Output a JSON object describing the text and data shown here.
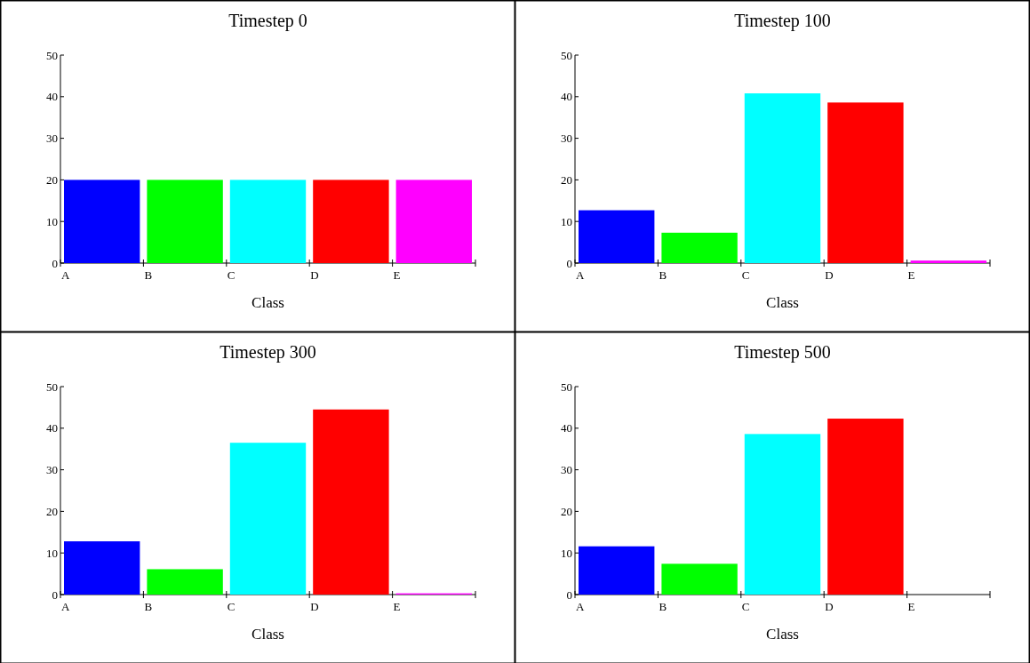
{
  "chart_data": [
    {
      "type": "bar",
      "title": "Timestep 0",
      "xlabel": "Class",
      "categories": [
        "A",
        "B",
        "C",
        "D",
        "E"
      ],
      "values": [
        20,
        20,
        20,
        20,
        20
      ],
      "colors": [
        "#0000ff",
        "#00ff00",
        "#00ffff",
        "#ff0000",
        "#ff00ff"
      ],
      "ylim": [
        0,
        50
      ],
      "yticks": [
        0,
        10,
        20,
        30,
        40,
        50
      ]
    },
    {
      "type": "bar",
      "title": "Timestep 100",
      "xlabel": "Class",
      "categories": [
        "A",
        "B",
        "C",
        "D",
        "E"
      ],
      "values": [
        12.7,
        7.3,
        40.8,
        38.6,
        0.6
      ],
      "colors": [
        "#0000ff",
        "#00ff00",
        "#00ffff",
        "#ff0000",
        "#ff00ff"
      ],
      "ylim": [
        0,
        50
      ],
      "yticks": [
        0,
        10,
        20,
        30,
        40,
        50
      ]
    },
    {
      "type": "bar",
      "title": "Timestep 300",
      "xlabel": "Class",
      "categories": [
        "A",
        "B",
        "C",
        "D",
        "E"
      ],
      "values": [
        12.8,
        6.1,
        36.5,
        44.5,
        0.3
      ],
      "colors": [
        "#0000ff",
        "#00ff00",
        "#00ffff",
        "#ff0000",
        "#ff00ff"
      ],
      "ylim": [
        0,
        50
      ],
      "yticks": [
        0,
        10,
        20,
        30,
        40,
        50
      ]
    },
    {
      "type": "bar",
      "title": "Timestep 500",
      "xlabel": "Class",
      "categories": [
        "A",
        "B",
        "C",
        "D",
        "E"
      ],
      "values": [
        11.6,
        7.4,
        38.6,
        42.3,
        0
      ],
      "colors": [
        "#0000ff",
        "#00ff00",
        "#00ffff",
        "#ff0000",
        "#ff00ff"
      ],
      "ylim": [
        0,
        50
      ],
      "yticks": [
        0,
        10,
        20,
        30,
        40,
        50
      ]
    }
  ]
}
